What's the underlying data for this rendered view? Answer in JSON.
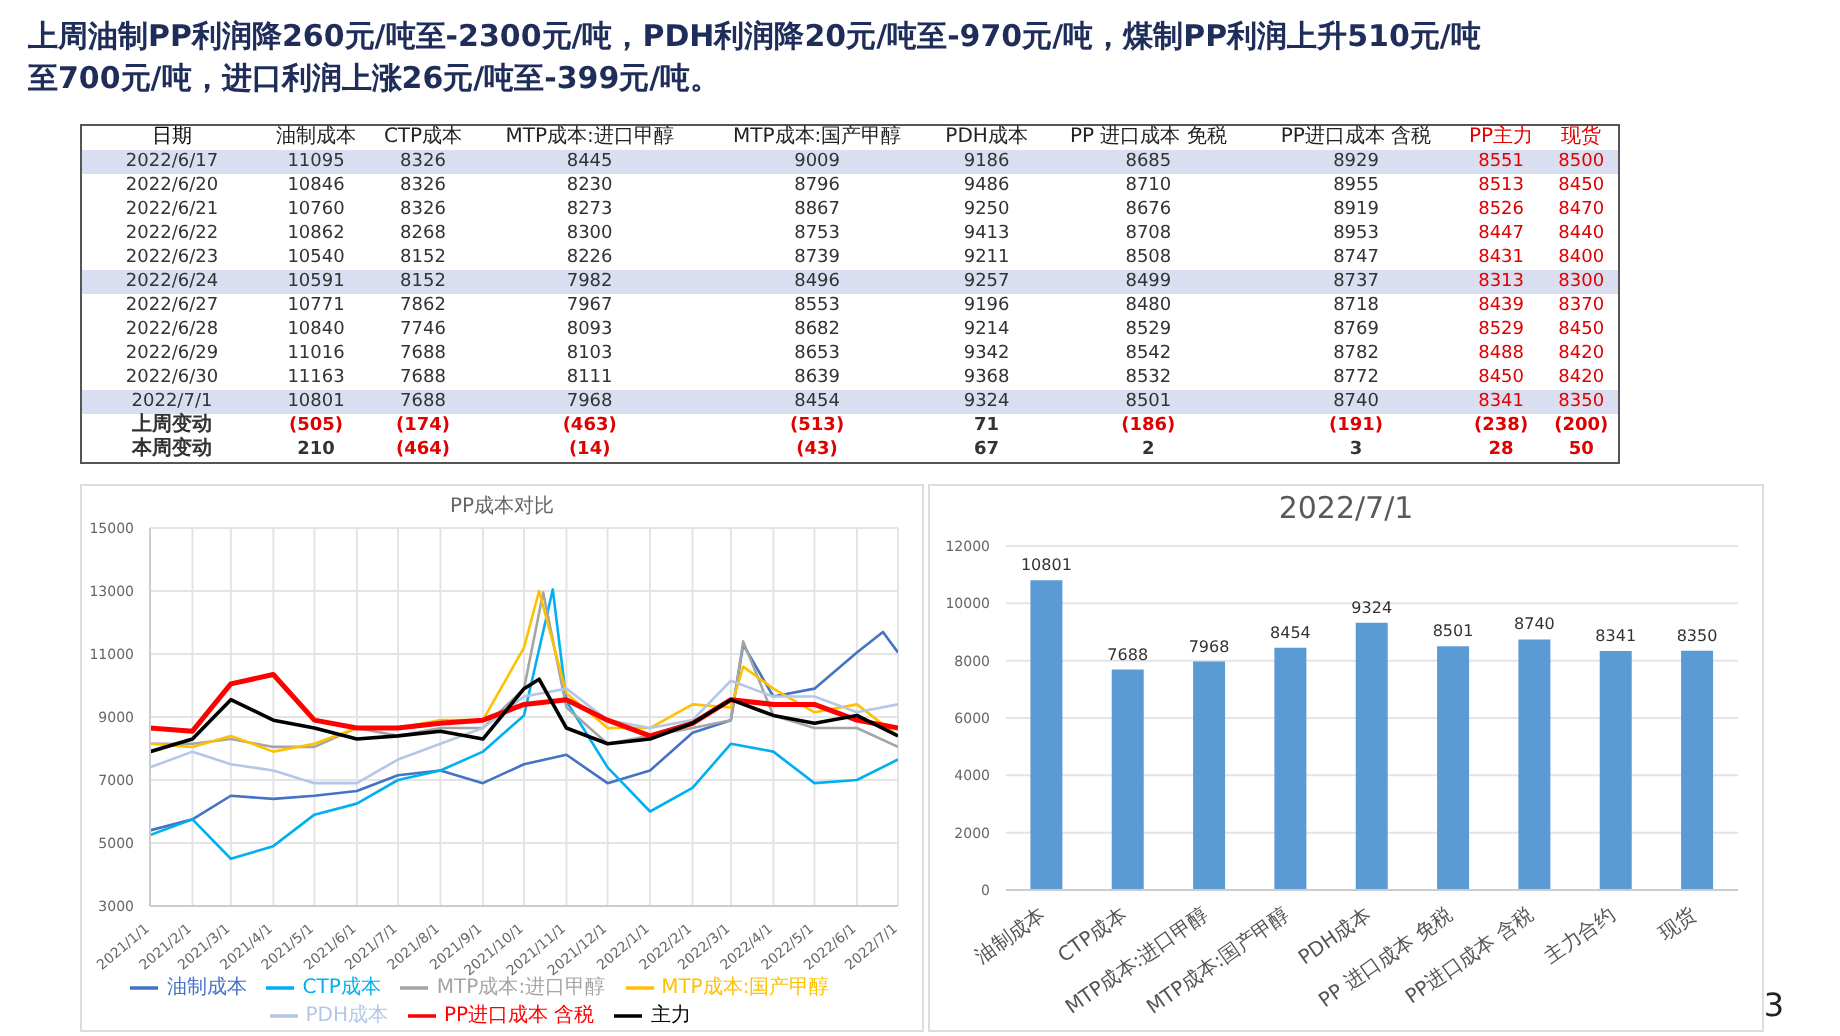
{
  "chart_data": [
    {
      "type": "heatmap",
      "title": "上周油制PP利润降260元/吨至-2300元/吨，PDH利润降20元/吨至-970元/吨，煤制PP利润上升510元/吨至700元/吨，进口利润上涨26元/吨至-399元/吨。",
      "ylabel": "日期",
      "annotations": [
        "3"
      ],
      "categories": [
        "油制成本",
        "CTP成本",
        "MTP成本:进口甲醇",
        "MTP成本:国产甲醇",
        "PDH成本",
        "PP 进口成本 免税",
        "PP进口成本 含税",
        "PP主力",
        "现货"
      ],
      "y_categories": [
        "2022/6/17",
        "2022/6/20",
        "2022/6/21",
        "2022/6/22",
        "2022/6/23",
        "2022/6/24",
        "2022/6/27",
        "2022/6/28",
        "2022/6/29",
        "2022/6/30",
        "2022/7/1",
        "上周变动",
        "本周变动"
      ],
      "cells": [
        [
          11095,
          8326,
          8445,
          9009,
          9186,
          8685,
          8929,
          8551,
          8500
        ],
        [
          10846,
          8326,
          8230,
          8796,
          9486,
          8710,
          8955,
          8513,
          8450
        ],
        [
          10760,
          8326,
          8273,
          8867,
          9250,
          8676,
          8919,
          8526,
          8470
        ],
        [
          10862,
          8268,
          8300,
          8753,
          9413,
          8708,
          8953,
          8447,
          8440
        ],
        [
          10540,
          8152,
          8226,
          8739,
          9211,
          8508,
          8747,
          8431,
          8400
        ],
        [
          10591,
          8152,
          7982,
          8496,
          9257,
          8499,
          8737,
          8313,
          8300
        ],
        [
          10771,
          7862,
          7967,
          8553,
          9196,
          8480,
          8718,
          8439,
          8370
        ],
        [
          10840,
          7746,
          8093,
          8682,
          9214,
          8529,
          8769,
          8529,
          8450
        ],
        [
          11016,
          7688,
          8103,
          8653,
          9342,
          8542,
          8782,
          8488,
          8420
        ],
        [
          11163,
          7688,
          8111,
          8639,
          9368,
          8532,
          8772,
          8450,
          8420
        ],
        [
          10801,
          7688,
          7968,
          8454,
          9324,
          8501,
          8740,
          8341,
          8350
        ],
        [
          -505,
          -174,
          -463,
          -513,
          71,
          -186,
          -191,
          -238,
          -200
        ],
        [
          210,
          -464,
          -14,
          -43,
          67,
          2,
          3,
          28,
          50
        ]
      ],
      "cell_labels": [
        [
          "11095",
          "8326",
          "8445",
          "9009",
          "9186",
          "8685",
          "8929",
          "8551",
          "8500"
        ],
        [
          "10846",
          "8326",
          "8230",
          "8796",
          "9486",
          "8710",
          "8955",
          "8513",
          "8450"
        ],
        [
          "10760",
          "8326",
          "8273",
          "8867",
          "9250",
          "8676",
          "8919",
          "8526",
          "8470"
        ],
        [
          "10862",
          "8268",
          "8300",
          "8753",
          "9413",
          "8708",
          "8953",
          "8447",
          "8440"
        ],
        [
          "10540",
          "8152",
          "8226",
          "8739",
          "9211",
          "8508",
          "8747",
          "8431",
          "8400"
        ],
        [
          "10591",
          "8152",
          "7982",
          "8496",
          "9257",
          "8499",
          "8737",
          "8313",
          "8300"
        ],
        [
          "10771",
          "7862",
          "7967",
          "8553",
          "9196",
          "8480",
          "8718",
          "8439",
          "8370"
        ],
        [
          "10840",
          "7746",
          "8093",
          "8682",
          "9214",
          "8529",
          "8769",
          "8529",
          "8450"
        ],
        [
          "11016",
          "7688",
          "8103",
          "8653",
          "9342",
          "8542",
          "8782",
          "8488",
          "8420"
        ],
        [
          "11163",
          "7688",
          "8111",
          "8639",
          "9368",
          "8532",
          "8772",
          "8450",
          "8420"
        ],
        [
          "10801",
          "7688",
          "7968",
          "8454",
          "9324",
          "8501",
          "8740",
          "8341",
          "8350"
        ],
        [
          "(505)",
          "(174)",
          "(463)",
          "(513)",
          "71",
          "(186)",
          "(191)",
          "(238)",
          "(200)"
        ],
        [
          "210",
          "(464)",
          "(14)",
          "(43)",
          "67",
          "2",
          "3",
          "28",
          "50"
        ]
      ]
    },
    {
      "type": "line",
      "title": "PP成本对比",
      "grid": true,
      "legend": "bottom",
      "marker": "none",
      "line_style": "solid",
      "xlim": [
        "2021-01-01",
        "2022-07-01"
      ],
      "xticks": [
        {
          "value": "2021-01-01",
          "label": "2021/1/1"
        },
        {
          "value": "2021-02-01",
          "label": "2021/2/1"
        },
        {
          "value": "2021-03-01",
          "label": "2021/3/1"
        },
        {
          "value": "2021-04-01",
          "label": "2021/4/1"
        },
        {
          "value": "2021-05-01",
          "label": "2021/5/1"
        },
        {
          "value": "2021-06-01",
          "label": "2021/6/1"
        },
        {
          "value": "2021-07-01",
          "label": "2021/7/1"
        },
        {
          "value": "2021-08-01",
          "label": "2021/8/1"
        },
        {
          "value": "2021-09-01",
          "label": "2021/9/1"
        },
        {
          "value": "2021-10-01",
          "label": "2021/10/1"
        },
        {
          "value": "2021-11-01",
          "label": "2021/11/1"
        },
        {
          "value": "2021-12-01",
          "label": "2021/12/1"
        },
        {
          "value": "2022-01-01",
          "label": "2022/1/1"
        },
        {
          "value": "2022-02-01",
          "label": "2022/2/1"
        },
        {
          "value": "2022-03-01",
          "label": "2022/3/1"
        },
        {
          "value": "2022-04-01",
          "label": "2022/4/1"
        },
        {
          "value": "2022-05-01",
          "label": "2022/5/1"
        },
        {
          "value": "2022-06-01",
          "label": "2022/6/1"
        },
        {
          "value": "2022-07-01",
          "label": "2022/7/1"
        }
      ],
      "ylim": [
        3000,
        15000
      ],
      "yticks": [
        3000,
        5000,
        7000,
        9000,
        11000,
        13000,
        15000
      ],
      "series": [
        {
          "name": "油制成本",
          "color": "#4472c4",
          "x": [
            "2021-01-01",
            "2021-02-01",
            "2021-03-01",
            "2021-04-01",
            "2021-05-01",
            "2021-06-01",
            "2021-07-01",
            "2021-08-01",
            "2021-09-01",
            "2021-10-01",
            "2021-11-01",
            "2021-12-01",
            "2022-01-01",
            "2022-02-01",
            "2022-03-01",
            "2022-03-10",
            "2022-04-01",
            "2022-05-01",
            "2022-06-01",
            "2022-06-20",
            "2022-07-01"
          ],
          "values": [
            5400,
            5750,
            6500,
            6400,
            6500,
            6650,
            7150,
            7300,
            6900,
            7500,
            7800,
            6900,
            7300,
            8500,
            8900,
            11300,
            9650,
            9900,
            11050,
            11700,
            11050
          ]
        },
        {
          "name": "CTP成本",
          "color": "#00b0f0",
          "x": [
            "2021-01-01",
            "2021-02-01",
            "2021-03-01",
            "2021-04-01",
            "2021-05-01",
            "2021-06-01",
            "2021-07-01",
            "2021-08-01",
            "2021-09-01",
            "2021-10-01",
            "2021-10-22",
            "2021-11-01",
            "2021-12-01",
            "2022-01-01",
            "2022-02-01",
            "2022-03-01",
            "2022-04-01",
            "2022-05-01",
            "2022-06-01",
            "2022-07-01"
          ],
          "values": [
            5250,
            5750,
            4500,
            4900,
            5900,
            6250,
            7000,
            7300,
            7900,
            9050,
            13050,
            9500,
            7400,
            6000,
            6750,
            8150,
            7900,
            6900,
            7000,
            7650
          ]
        },
        {
          "name": "MTP成本:进口甲醇",
          "color": "#a5a5a5",
          "x": [
            "2021-01-01",
            "2021-02-01",
            "2021-03-01",
            "2021-04-01",
            "2021-05-01",
            "2021-06-01",
            "2021-07-01",
            "2021-08-01",
            "2021-09-01",
            "2021-10-01",
            "2021-10-15",
            "2021-11-01",
            "2021-12-01",
            "2022-01-01",
            "2022-02-01",
            "2022-03-01",
            "2022-03-10",
            "2022-04-01",
            "2022-05-01",
            "2022-06-01",
            "2022-07-01"
          ],
          "values": [
            8150,
            8150,
            8300,
            8050,
            8050,
            8650,
            8400,
            8650,
            8650,
            9900,
            12950,
            9300,
            8150,
            8400,
            8650,
            8900,
            11400,
            9050,
            8650,
            8650,
            8050
          ]
        },
        {
          "name": "MTP成本:国产甲醇",
          "color": "#ffc000",
          "x": [
            "2021-01-01",
            "2021-02-01",
            "2021-03-01",
            "2021-04-01",
            "2021-05-01",
            "2021-06-01",
            "2021-07-01",
            "2021-08-01",
            "2021-09-01",
            "2021-10-01",
            "2021-10-12",
            "2021-11-01",
            "2021-12-01",
            "2022-01-01",
            "2022-02-01",
            "2022-03-01",
            "2022-03-10",
            "2022-04-01",
            "2022-05-01",
            "2022-06-01",
            "2022-07-01"
          ],
          "values": [
            8150,
            8050,
            8400,
            7900,
            8150,
            8650,
            8650,
            8900,
            8900,
            11200,
            13000,
            9750,
            8650,
            8650,
            9400,
            9300,
            10600,
            9900,
            9150,
            9400,
            8400
          ]
        },
        {
          "name": "PDH成本",
          "color": "#b4c7e7",
          "x": [
            "2021-01-01",
            "2021-02-01",
            "2021-03-01",
            "2021-04-01",
            "2021-05-01",
            "2021-06-01",
            "2021-07-01",
            "2021-08-01",
            "2021-09-01",
            "2021-10-01",
            "2021-11-01",
            "2021-12-01",
            "2022-01-01",
            "2022-02-01",
            "2022-03-01",
            "2022-04-01",
            "2022-05-01",
            "2022-06-01",
            "2022-07-01"
          ],
          "values": [
            7400,
            7900,
            7500,
            7300,
            6900,
            6900,
            7650,
            8150,
            8650,
            9650,
            9900,
            8900,
            8650,
            8900,
            10150,
            9650,
            9650,
            9150,
            9400
          ]
        },
        {
          "name": "PP进口成本 含税",
          "color": "#ff0000",
          "x": [
            "2021-01-01",
            "2021-02-01",
            "2021-03-01",
            "2021-04-01",
            "2021-05-01",
            "2021-06-01",
            "2021-07-01",
            "2021-08-01",
            "2021-09-01",
            "2021-10-01",
            "2021-11-01",
            "2021-12-01",
            "2022-01-01",
            "2022-02-01",
            "2022-03-01",
            "2022-04-01",
            "2022-05-01",
            "2022-06-01",
            "2022-07-01"
          ],
          "values": [
            8650,
            8550,
            10050,
            10350,
            8900,
            8650,
            8650,
            8800,
            8900,
            9400,
            9550,
            8900,
            8400,
            8800,
            9550,
            9400,
            9400,
            8900,
            8650
          ]
        },
        {
          "name": "主力",
          "color": "#000000",
          "x": [
            "2021-01-01",
            "2021-02-01",
            "2021-03-01",
            "2021-04-01",
            "2021-05-01",
            "2021-06-01",
            "2021-07-01",
            "2021-08-01",
            "2021-09-01",
            "2021-10-01",
            "2021-10-12",
            "2021-11-01",
            "2021-12-01",
            "2022-01-01",
            "2022-02-01",
            "2022-03-01",
            "2022-04-01",
            "2022-05-01",
            "2022-06-01",
            "2022-07-01"
          ],
          "values": [
            7900,
            8300,
            9550,
            8900,
            8650,
            8300,
            8400,
            8550,
            8300,
            9900,
            10200,
            8650,
            8150,
            8300,
            8800,
            9550,
            9050,
            8800,
            9050,
            8400
          ]
        }
      ]
    },
    {
      "type": "bar",
      "title": "2022/7/1",
      "grid": "y",
      "data_labels": true,
      "color": "#5b9bd5",
      "categories": [
        "油制成本",
        "CTP成本",
        "MTP成本:进口甲醇",
        "MTP成本:国产甲醇",
        "PDH成本",
        "PP 进口成本 免税",
        "PP进口成本 含税",
        "主力合约",
        "现货"
      ],
      "values": [
        10801,
        7688,
        7968,
        8454,
        9324,
        8501,
        8740,
        8341,
        8350
      ],
      "ylim": [
        0,
        12000
      ],
      "yticks": [
        0,
        2000,
        4000,
        6000,
        8000,
        10000,
        12000
      ]
    }
  ]
}
